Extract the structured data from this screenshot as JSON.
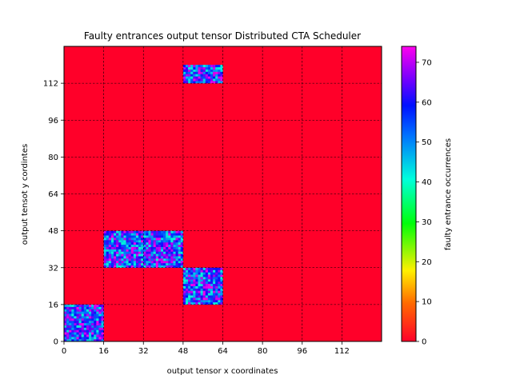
{
  "chart_data": {
    "type": "heatmap",
    "title": "Faulty entrances output tensor Distributed CTA Scheduler",
    "xlabel": "output tensor x coordinates",
    "ylabel": "output tensot y cordintes",
    "colorbar_label": "faulty entrance occurrences",
    "xlim": [
      0,
      128
    ],
    "ylim": [
      0,
      128
    ],
    "x_ticks": [
      0,
      16,
      32,
      48,
      64,
      80,
      96,
      112
    ],
    "y_ticks": [
      0,
      16,
      32,
      48,
      64,
      80,
      96,
      112
    ],
    "colorbar_range": [
      0,
      74
    ],
    "colorbar_ticks": [
      0,
      10,
      20,
      30,
      40,
      50,
      60,
      70
    ],
    "colormap": "gist_rainbow_r",
    "grid": true,
    "grid_style": "dashed",
    "background_value": 0,
    "background_color": "#ff0029",
    "faulty_regions": [
      {
        "x": [
          0,
          16
        ],
        "y": [
          0,
          16
        ],
        "value_range": [
          40,
          74
        ]
      },
      {
        "x": [
          16,
          48
        ],
        "y": [
          32,
          48
        ],
        "value_range": [
          40,
          74
        ]
      },
      {
        "x": [
          48,
          64
        ],
        "y": [
          16,
          32
        ],
        "value_range": [
          40,
          74
        ]
      },
      {
        "x": [
          48,
          64
        ],
        "y": [
          112,
          120
        ],
        "value_range": [
          40,
          74
        ]
      }
    ]
  }
}
